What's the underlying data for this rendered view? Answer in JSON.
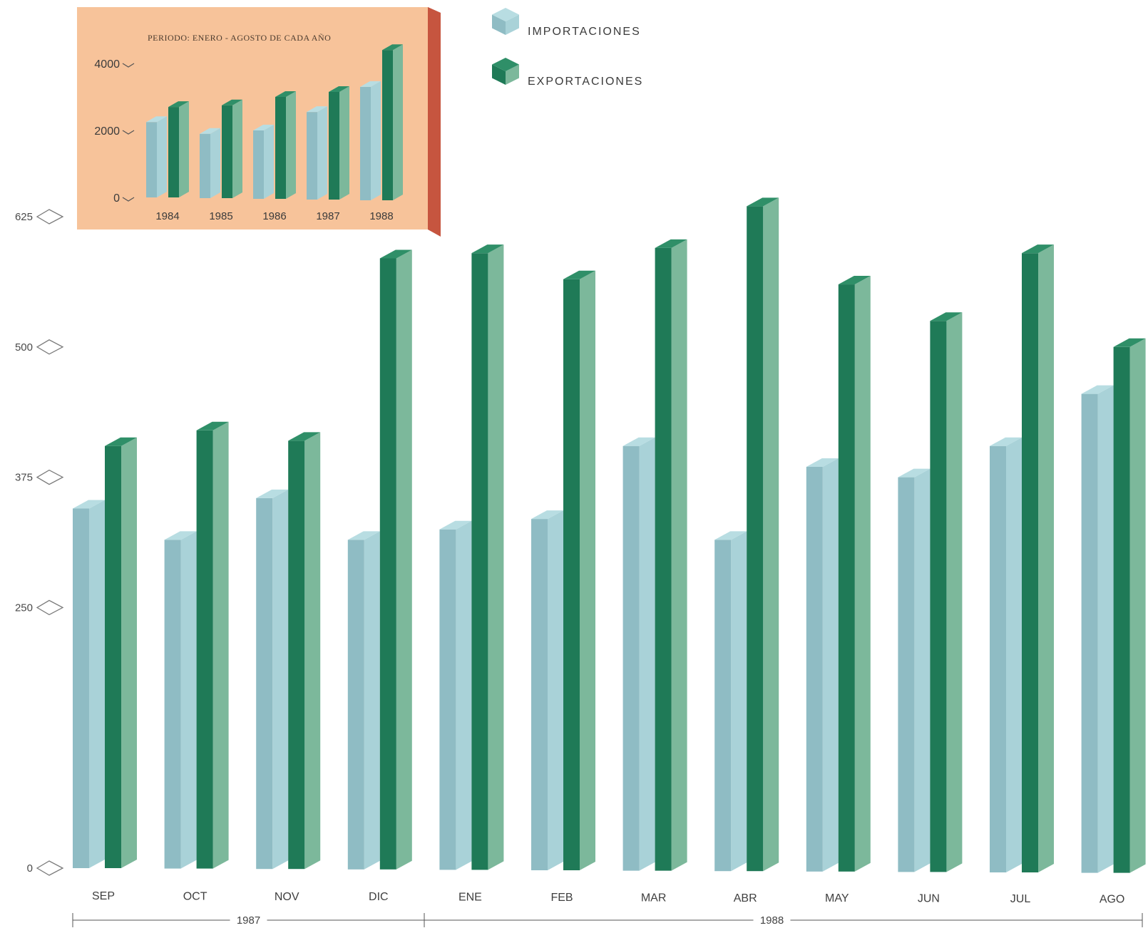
{
  "colors": {
    "import_front": "#8fbcc4",
    "import_side": "#a9d2d8",
    "import_top": "#b8dde2",
    "export_front": "#1f7a57",
    "export_side": "#7cb89b",
    "export_top": "#2f8f68",
    "inset_bg": "#f7c39a",
    "inset_edge": "#c6553f"
  },
  "legend": {
    "import_label": "IMPORTACIONES",
    "export_label": "EXPORTACIONES"
  },
  "chart_data": [
    {
      "type": "bar",
      "title": "",
      "xlabel": "",
      "ylabel": "",
      "ylim": [
        0,
        625
      ],
      "y_ticks": [
        "0",
        "250",
        "375",
        "500",
        "625"
      ],
      "categories": [
        "SEP",
        "OCT",
        "NOV",
        "DIC",
        "ENE",
        "FEB",
        "MAR",
        "ABR",
        "MAY",
        "JUN",
        "JUL",
        "AGO"
      ],
      "year_groups": [
        {
          "label": "1987",
          "from": 0,
          "to": 3
        },
        {
          "label": "1988",
          "from": 4,
          "to": 11
        }
      ],
      "series": [
        {
          "name": "IMPORTACIONES",
          "values": [
            345,
            315,
            355,
            315,
            325,
            335,
            405,
            315,
            385,
            375,
            405,
            455
          ]
        },
        {
          "name": "EXPORTACIONES",
          "values": [
            405,
            420,
            410,
            585,
            590,
            565,
            595,
            635,
            560,
            525,
            590,
            500
          ]
        }
      ]
    },
    {
      "type": "bar",
      "title": "PERIODO: ENERO - AGOSTO DE CADA AÑO",
      "xlabel": "",
      "ylabel": "",
      "ylim": [
        0,
        4000
      ],
      "y_ticks": [
        "0",
        "2000",
        "4000"
      ],
      "categories": [
        "1984",
        "1985",
        "1986",
        "1987",
        "1988"
      ],
      "series": [
        {
          "name": "IMPORTACIONES",
          "values": [
            2250,
            1900,
            2000,
            2550,
            3300
          ]
        },
        {
          "name": "EXPORTACIONES",
          "values": [
            2700,
            2750,
            3000,
            3150,
            4400
          ]
        }
      ]
    }
  ]
}
